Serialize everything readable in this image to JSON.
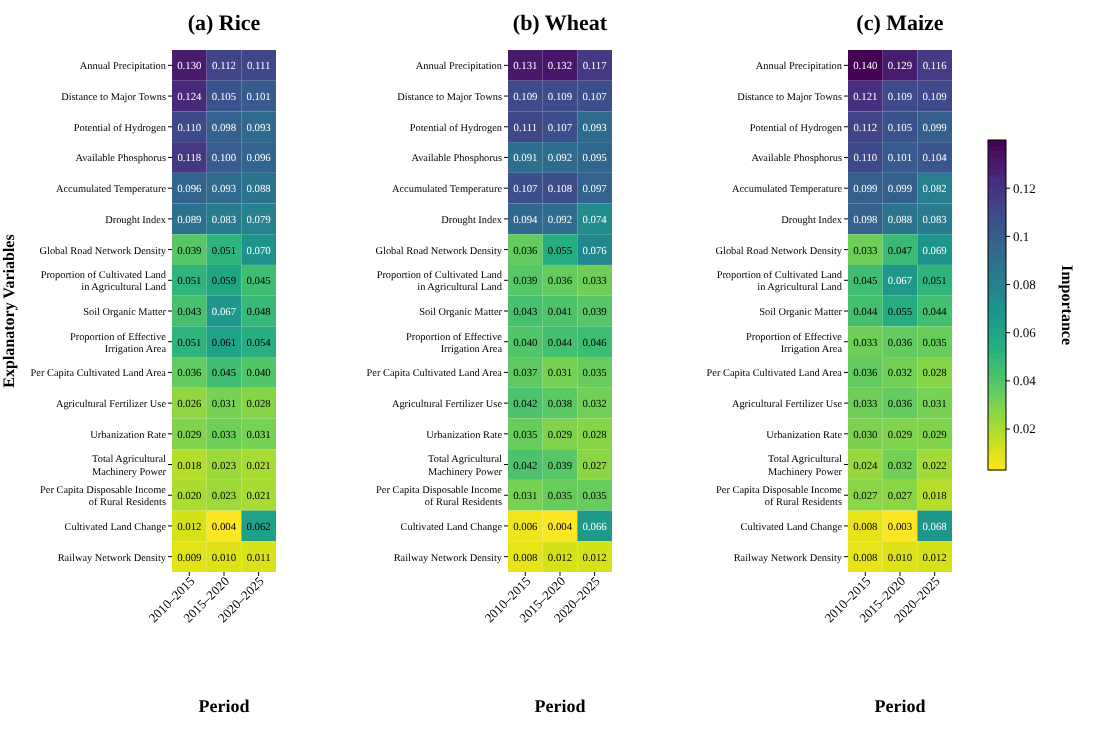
{
  "chart_data": [
    {
      "type": "heatmap",
      "title": "(a) Rice",
      "xlabel": "Period",
      "ylabel": "Explanatory Variables",
      "categories": [
        "2010–2015",
        "2015–2020",
        "2020–2025"
      ],
      "y_categories": [
        "Annual Precipitation",
        "Distance to Major Towns",
        "Potential of Hydrogen",
        "Available Phosphorus",
        "Accumulated Temperature",
        "Drought Index",
        "Global Road Network Density",
        "Proportion of Cultivated Land\nin Agricultural Land",
        "Soil Organic Matter",
        "Proportion of Effective\nIrrigation Area",
        "Per Capita Cultivated Land Area",
        "Agricultural Fertilizer Use",
        "Urbanization Rate",
        "Total Agricultural\nMachinery Power",
        "Per Capita Disposable Income\nof Rural Residents",
        "Cultivated Land Change",
        "Railway Network Density"
      ],
      "cells": [
        [
          0.13,
          0.112,
          0.111
        ],
        [
          0.124,
          0.105,
          0.101
        ],
        [
          0.11,
          0.098,
          0.093
        ],
        [
          0.118,
          0.1,
          0.096
        ],
        [
          0.096,
          0.093,
          0.088
        ],
        [
          0.089,
          0.083,
          0.079
        ],
        [
          0.039,
          0.051,
          0.07
        ],
        [
          0.051,
          0.059,
          0.045
        ],
        [
          0.043,
          0.067,
          0.048
        ],
        [
          0.051,
          0.061,
          0.054
        ],
        [
          0.036,
          0.045,
          0.04
        ],
        [
          0.026,
          0.031,
          0.028
        ],
        [
          0.029,
          0.033,
          0.031
        ],
        [
          0.018,
          0.023,
          0.021
        ],
        [
          0.02,
          0.023,
          0.021
        ],
        [
          0.012,
          0.004,
          0.062
        ],
        [
          0.009,
          0.01,
          0.011
        ]
      ],
      "cell_labels": [
        [
          "0.130",
          "0.112",
          "0.111"
        ],
        [
          "0.124",
          "0.105",
          "0.101"
        ],
        [
          "0.110",
          "0.098",
          "0.093"
        ],
        [
          "0.118",
          "0.100",
          "0.096"
        ],
        [
          "0.096",
          "0.093",
          "0.088"
        ],
        [
          "0.089",
          "0.083",
          "0.079"
        ],
        [
          "0.039",
          "0.051",
          "0.070"
        ],
        [
          "0.051",
          "0.059",
          "0.045"
        ],
        [
          "0.043",
          "0.067",
          "0.048"
        ],
        [
          "0.051",
          "0.061",
          "0.054"
        ],
        [
          "0.036",
          "0.045",
          "0.040"
        ],
        [
          "0.026",
          "0.031",
          "0.028"
        ],
        [
          "0.029",
          "0.033",
          "0.031"
        ],
        [
          "0.018",
          "0.023",
          "0.021"
        ],
        [
          "0.020",
          "0.023",
          "0.021"
        ],
        [
          "0.012",
          "0.004",
          "0.062"
        ],
        [
          "0.009",
          "0.010",
          "0.011"
        ]
      ]
    },
    {
      "type": "heatmap",
      "title": "(b) Wheat",
      "xlabel": "Period",
      "categories": [
        "2010–2015",
        "2015–2020",
        "2020–2025"
      ],
      "y_categories": [
        "Annual Precipitation",
        "Distance to Major Towns",
        "Potential of Hydrogen",
        "Available Phosphorus",
        "Accumulated Temperature",
        "Drought Index",
        "Global Road Network Density",
        "Proportion of Cultivated Land\nin Agricultural Land",
        "Soil Organic Matter",
        "Proportion of Effective\nIrrigation Area",
        "Per Capita Cultivated Land Area",
        "Agricultural Fertilizer Use",
        "Urbanization Rate",
        "Total Agricultural\nMachinery Power",
        "Per Capita Disposable Income\nof Rural Residents",
        "Cultivated Land Change",
        "Railway Network Density"
      ],
      "cells": [
        [
          0.131,
          0.132,
          0.117
        ],
        [
          0.109,
          0.109,
          0.107
        ],
        [
          0.111,
          0.107,
          0.093
        ],
        [
          0.091,
          0.092,
          0.095
        ],
        [
          0.107,
          0.108,
          0.097
        ],
        [
          0.094,
          0.092,
          0.074
        ],
        [
          0.036,
          0.055,
          0.076
        ],
        [
          0.039,
          0.036,
          0.033
        ],
        [
          0.043,
          0.041,
          0.039
        ],
        [
          0.04,
          0.044,
          0.046
        ],
        [
          0.037,
          0.031,
          0.035
        ],
        [
          0.042,
          0.038,
          0.032
        ],
        [
          0.035,
          0.029,
          0.028
        ],
        [
          0.042,
          0.039,
          0.027
        ],
        [
          0.031,
          0.035,
          0.035
        ],
        [
          0.006,
          0.004,
          0.066
        ],
        [
          0.008,
          0.012,
          0.012
        ]
      ],
      "cell_labels": [
        [
          "0.131",
          "0.132",
          "0.117"
        ],
        [
          "0.109",
          "0.109",
          "0.107"
        ],
        [
          "0.111",
          "0.107",
          "0.093"
        ],
        [
          "0.091",
          "0.092",
          "0.095"
        ],
        [
          "0.107",
          "0.108",
          "0.097"
        ],
        [
          "0.094",
          "0.092",
          "0.074"
        ],
        [
          "0.036",
          "0.055",
          "0.076"
        ],
        [
          "0.039",
          "0.036",
          "0.033"
        ],
        [
          "0.043",
          "0.041",
          "0.039"
        ],
        [
          "0.040",
          "0.044",
          "0.046"
        ],
        [
          "0.037",
          "0.031",
          "0.035"
        ],
        [
          "0.042",
          "0.038",
          "0.032"
        ],
        [
          "0.035",
          "0.029",
          "0.028"
        ],
        [
          "0.042",
          "0.039",
          "0.027"
        ],
        [
          "0.031",
          "0.035",
          "0.035"
        ],
        [
          "0.006",
          "0.004",
          "0.066"
        ],
        [
          "0.008",
          "0.012",
          "0.012"
        ]
      ]
    },
    {
      "type": "heatmap",
      "title": "(c) Maize",
      "xlabel": "Period",
      "clabel": "Importance",
      "categories": [
        "2010–2015",
        "2015–2020",
        "2020–2025"
      ],
      "y_categories": [
        "Annual Precipitation",
        "Distance to Major Towns",
        "Potential of Hydrogen",
        "Available Phosphorus",
        "Accumulated Temperature",
        "Drought Index",
        "Global Road Network Density",
        "Proportion of Cultivated Land\nin Agricultural Land",
        "Soil Organic Matter",
        "Proportion of Effective\nIrrigation Area",
        "Per Capita Cultivated Land Area",
        "Agricultural Fertilizer Use",
        "Urbanization Rate",
        "Total Agricultural\nMachinery Power",
        "Per Capita Disposable Income\nof Rural Residents",
        "Cultivated Land Change",
        "Railway Network Density"
      ],
      "cells": [
        [
          0.14,
          0.129,
          0.116
        ],
        [
          0.121,
          0.109,
          0.109
        ],
        [
          0.112,
          0.105,
          0.099
        ],
        [
          0.11,
          0.101,
          0.104
        ],
        [
          0.099,
          0.099,
          0.082
        ],
        [
          0.098,
          0.088,
          0.083
        ],
        [
          0.033,
          0.047,
          0.069
        ],
        [
          0.045,
          0.067,
          0.051
        ],
        [
          0.044,
          0.055,
          0.044
        ],
        [
          0.033,
          0.036,
          0.035
        ],
        [
          0.036,
          0.032,
          0.028
        ],
        [
          0.033,
          0.036,
          0.031
        ],
        [
          0.03,
          0.029,
          0.029
        ],
        [
          0.024,
          0.032,
          0.022
        ],
        [
          0.027,
          0.027,
          0.018
        ],
        [
          0.008,
          0.003,
          0.068
        ],
        [
          0.008,
          0.01,
          0.012
        ]
      ],
      "cell_labels": [
        [
          "0.140",
          "0.129",
          "0.116"
        ],
        [
          "0.121",
          "0.109",
          "0.109"
        ],
        [
          "0.112",
          "0.105",
          "0.099"
        ],
        [
          "0.110",
          "0.101",
          "0.104"
        ],
        [
          "0.099",
          "0.099",
          "0.082"
        ],
        [
          "0.098",
          "0.088",
          "0.083"
        ],
        [
          "0.033",
          "0.047",
          "0.069"
        ],
        [
          "0.045",
          "0.067",
          "0.051"
        ],
        [
          "0.044",
          "0.055",
          "0.044"
        ],
        [
          "0.033",
          "0.036",
          "0.035"
        ],
        [
          "0.036",
          "0.032",
          "0.028"
        ],
        [
          "0.033",
          "0.036",
          "0.031"
        ],
        [
          "0.030",
          "0.029",
          "0.029"
        ],
        [
          "0.024",
          "0.032",
          "0.022"
        ],
        [
          "0.027",
          "0.027",
          "0.018"
        ],
        [
          "0.008",
          "0.003",
          "0.068"
        ],
        [
          "0.008",
          "0.010",
          "0.012"
        ]
      ],
      "clim": [
        0.003,
        0.14
      ],
      "cticks": [
        0.02,
        0.04,
        0.06,
        0.08,
        0.1,
        0.12
      ]
    }
  ]
}
